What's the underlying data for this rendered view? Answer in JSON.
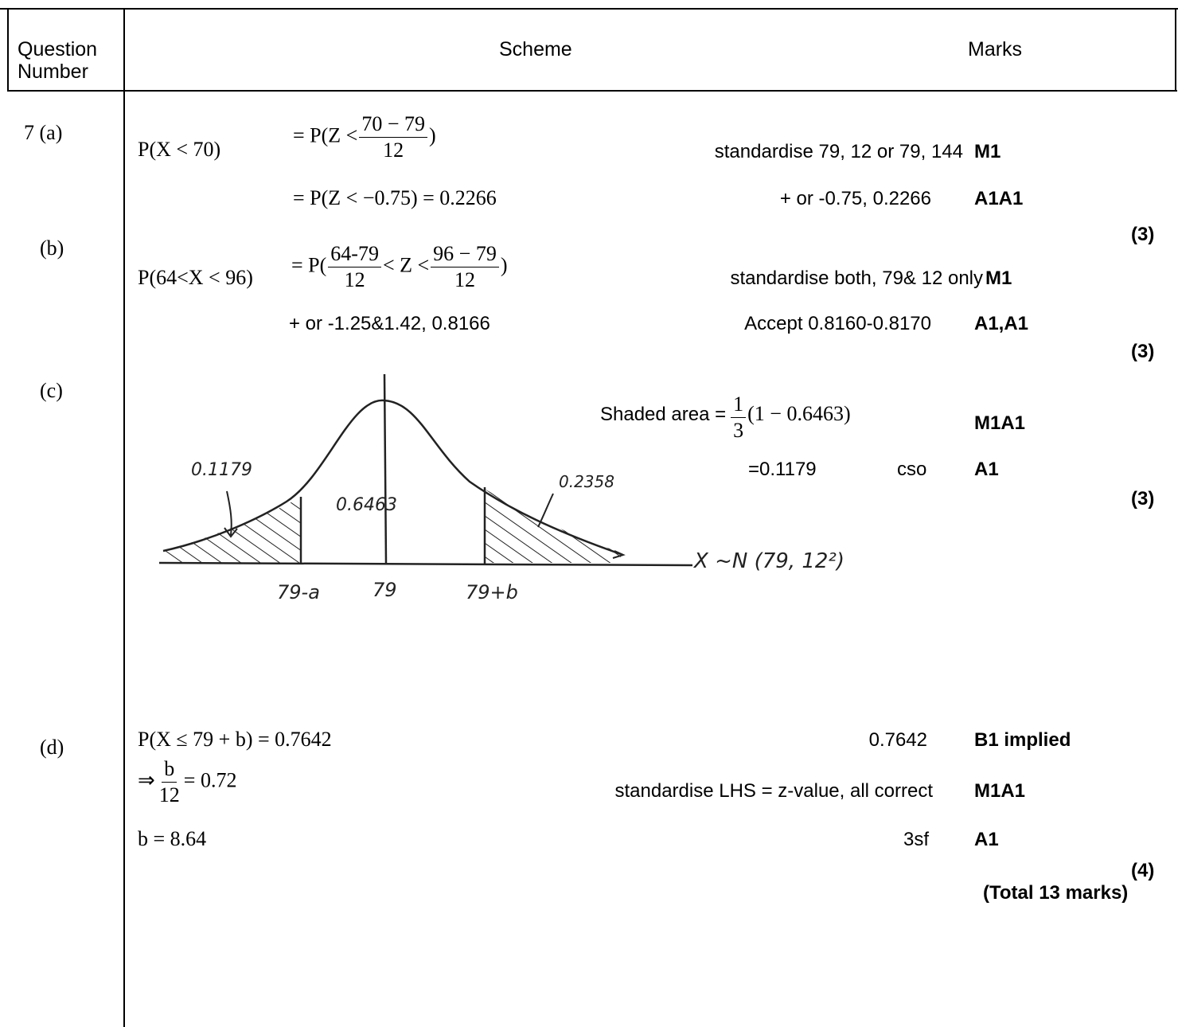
{
  "header": {
    "question_number": "Question\nNumber",
    "scheme": "Scheme",
    "marks": "Marks"
  },
  "parts": {
    "a": {
      "label": "7 (a)",
      "line1_lhs": "P(X < 70)",
      "line1_eq_pre": "= P(Z <",
      "line1_num": "70 − 79",
      "line1_den": "12",
      "line1_eq_post": ")",
      "line1_comment": "standardise 79, 12  or 79, 144",
      "line1_mark": "M1",
      "line2": "= P(Z < −0.75) = 0.2266",
      "line2_comment": "+ or -0.75, 0.2266",
      "line2_mark": "A1A1",
      "subtotal": "(3)"
    },
    "b": {
      "label": "(b)",
      "line1_lhs": "P(64<X < 96)",
      "line1_eq_pre": "= P(",
      "num1": "64-79",
      "den1": "12",
      "mid": "< Z <",
      "num2": "96 − 79",
      "den2": "12",
      "line1_eq_post": ")",
      "line1_comment": "standardise both, 79& 12 only",
      "line1_mark": "M1",
      "line2": "+ or -1.25&1.42, 0.8166",
      "line2_comment": "Accept 0.8160-0.8170",
      "line2_mark": "A1,A1",
      "subtotal": "(3)"
    },
    "c": {
      "label": "(c)",
      "sketch": {
        "left_area": "0.1179",
        "middle_area": "0.6463",
        "right_area": "0.2358",
        "tick_left": "79-a",
        "tick_mid": "79",
        "tick_right": "79+b",
        "dist": "X ~N (79, 12²)"
      },
      "shaded_pre": "Shaded area =",
      "shaded_num": "1",
      "shaded_den": "3",
      "shaded_post": "(1 − 0.6463)",
      "shaded_mark": "M1A1",
      "result": "=0.1179",
      "result_note": "cso",
      "result_mark": "A1",
      "subtotal": "(3)"
    },
    "d": {
      "label": "(d)",
      "line1": "P(X ≤ 79 + b) = 0.7642",
      "line1_comment": "0.7642",
      "line1_mark": "B1 implied",
      "line2_pre": "⇒",
      "line2_num": "b",
      "line2_den": "12",
      "line2_post": "= 0.72",
      "line2_comment": "standardise LHS = z-value, all correct",
      "line2_mark": "M1A1",
      "line3": "b = 8.64",
      "line3_comment": "3sf",
      "line3_mark": "A1",
      "subtotal": "(4)",
      "total": "(Total 13 marks)"
    }
  }
}
